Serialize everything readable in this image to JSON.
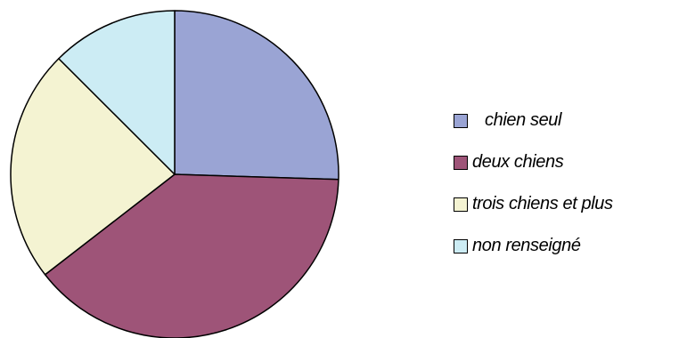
{
  "chart_data": {
    "type": "pie",
    "title": "",
    "categories": [
      "chien seul",
      "deux chiens",
      "trois chiens et plus",
      "non renseigné"
    ],
    "values": [
      25.5,
      39,
      23,
      12.5
    ],
    "colors": [
      "#9aa4d4",
      "#9e5478",
      "#f4f3d2",
      "#ccecf4"
    ],
    "start_angle_deg": 0,
    "direction": "clockwise",
    "legend": "right"
  }
}
